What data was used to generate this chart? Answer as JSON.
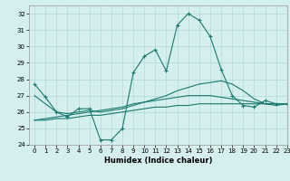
{
  "xlabel": "Humidex (Indice chaleur)",
  "xlim": [
    -0.5,
    23
  ],
  "ylim": [
    24,
    32.5
  ],
  "yticks": [
    24,
    25,
    26,
    27,
    28,
    29,
    30,
    31,
    32
  ],
  "xticks": [
    0,
    1,
    2,
    3,
    4,
    5,
    6,
    7,
    8,
    9,
    10,
    11,
    12,
    13,
    14,
    15,
    16,
    17,
    18,
    19,
    20,
    21,
    22,
    23
  ],
  "bg_color": "#d5eeee",
  "grid_color": "#b0d8d8",
  "line_color": "#1a7a6e",
  "series": [
    [
      27.7,
      26.9,
      26.0,
      25.7,
      26.2,
      26.2,
      24.3,
      24.3,
      25.0,
      28.4,
      29.4,
      29.8,
      28.5,
      31.3,
      32.0,
      31.6,
      30.6,
      28.6,
      27.0,
      26.4,
      26.3,
      26.7,
      26.5,
      26.5
    ],
    [
      27.0,
      26.5,
      26.0,
      25.9,
      26.0,
      26.1,
      26.0,
      26.1,
      26.2,
      26.4,
      26.6,
      26.8,
      27.0,
      27.3,
      27.5,
      27.7,
      27.8,
      27.9,
      27.7,
      27.3,
      26.8,
      26.5,
      26.4,
      26.5
    ],
    [
      25.5,
      25.6,
      25.7,
      25.8,
      25.9,
      26.0,
      26.1,
      26.2,
      26.3,
      26.5,
      26.6,
      26.7,
      26.8,
      26.9,
      27.0,
      27.0,
      27.0,
      26.9,
      26.8,
      26.7,
      26.6,
      26.5,
      26.5,
      26.5
    ],
    [
      25.5,
      25.5,
      25.6,
      25.6,
      25.7,
      25.8,
      25.8,
      25.9,
      26.0,
      26.1,
      26.2,
      26.3,
      26.3,
      26.4,
      26.4,
      26.5,
      26.5,
      26.5,
      26.5,
      26.5,
      26.5,
      26.5,
      26.5,
      26.5
    ]
  ]
}
